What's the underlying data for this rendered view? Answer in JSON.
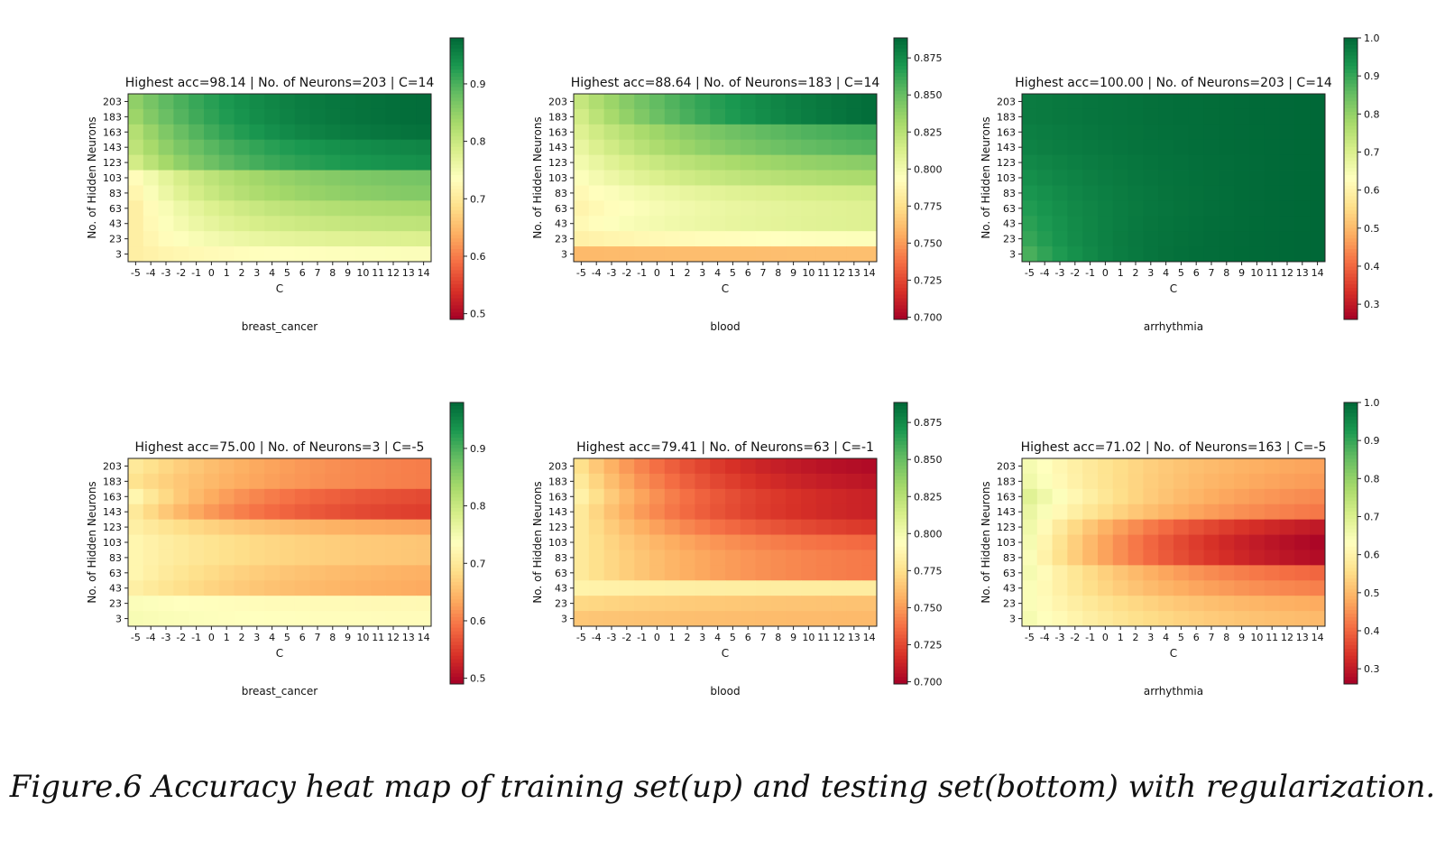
{
  "caption": "Figure.6  Accuracy heat map of training set(up) and testing set(bottom) with regularization.",
  "chart_data": [
    {
      "type": "heatmap",
      "name": "breast_cancer",
      "subset": "train",
      "title": "Highest acc=98.14 | No. of Neurons=203 | C=14",
      "xlabel": "C",
      "ylabel": "No. of Hidden Neurons",
      "x": [
        -5,
        -4,
        -3,
        -2,
        -1,
        0,
        1,
        2,
        3,
        4,
        5,
        6,
        7,
        8,
        9,
        10,
        11,
        12,
        13,
        14
      ],
      "y": [
        203,
        183,
        163,
        143,
        123,
        103,
        83,
        63,
        43,
        23,
        3
      ],
      "colorbar": {
        "min": 0.49,
        "max": 0.98,
        "ticks": [
          0.5,
          0.6,
          0.7,
          0.8,
          0.9
        ],
        "tick_labels": [
          "0.5",
          "0.6",
          "0.7",
          "0.8",
          "0.9"
        ]
      },
      "colormap": "RdYlGn",
      "rows": [
        {
          "start": 0.85,
          "end": 0.975,
          "k": 3
        },
        {
          "start": 0.84,
          "end": 0.975,
          "k": 3
        },
        {
          "start": 0.82,
          "end": 0.97,
          "k": 3
        },
        {
          "start": 0.81,
          "end": 0.95,
          "k": 3
        },
        {
          "start": 0.79,
          "end": 0.94,
          "k": 3
        },
        {
          "start": 0.73,
          "end": 0.87,
          "k": 3
        },
        {
          "start": 0.72,
          "end": 0.86,
          "k": 3
        },
        {
          "start": 0.71,
          "end": 0.83,
          "k": 3
        },
        {
          "start": 0.71,
          "end": 0.81,
          "k": 3
        },
        {
          "start": 0.71,
          "end": 0.78,
          "k": 3
        },
        {
          "start": 0.71,
          "end": 0.74,
          "k": 3
        }
      ]
    },
    {
      "type": "heatmap",
      "name": "blood",
      "subset": "train",
      "title": "Highest acc=88.64 | No. of Neurons=183 | C=14",
      "xlabel": "C",
      "ylabel": "No. of Hidden Neurons",
      "x": [
        -5,
        -4,
        -3,
        -2,
        -1,
        0,
        1,
        2,
        3,
        4,
        5,
        6,
        7,
        8,
        9,
        10,
        11,
        12,
        13,
        14
      ],
      "y": [
        203,
        183,
        163,
        143,
        123,
        103,
        83,
        63,
        43,
        23,
        3
      ],
      "colorbar": {
        "min": 0.6985,
        "max": 0.8885,
        "ticks": [
          0.7,
          0.725,
          0.75,
          0.775,
          0.8,
          0.825,
          0.85,
          0.875
        ],
        "tick_labels": [
          "0.700",
          "0.725",
          "0.750",
          "0.775",
          "0.800",
          "0.825",
          "0.850",
          "0.875"
        ]
      },
      "colormap": "RdYlGn",
      "rows": [
        {
          "start": 0.82,
          "end": 0.886,
          "k": 2
        },
        {
          "start": 0.815,
          "end": 0.886,
          "k": 2
        },
        {
          "start": 0.81,
          "end": 0.86,
          "k": 2
        },
        {
          "start": 0.805,
          "end": 0.855,
          "k": 2
        },
        {
          "start": 0.8,
          "end": 0.84,
          "k": 2
        },
        {
          "start": 0.795,
          "end": 0.83,
          "k": 2
        },
        {
          "start": 0.79,
          "end": 0.815,
          "k": 2
        },
        {
          "start": 0.787,
          "end": 0.81,
          "k": 2
        },
        {
          "start": 0.79,
          "end": 0.81,
          "k": 2
        },
        {
          "start": 0.785,
          "end": 0.795,
          "k": 2
        },
        {
          "start": 0.76,
          "end": 0.762,
          "k": 2
        }
      ]
    },
    {
      "type": "heatmap",
      "name": "arrhythmia",
      "subset": "train",
      "title": "Highest acc=100.00 | No. of Neurons=203 | C=14",
      "xlabel": "C",
      "ylabel": "No. of Hidden Neurons",
      "x": [
        -5,
        -4,
        -3,
        -2,
        -1,
        0,
        1,
        2,
        3,
        4,
        5,
        6,
        7,
        8,
        9,
        10,
        11,
        12,
        13,
        14
      ],
      "y": [
        203,
        183,
        163,
        143,
        123,
        103,
        83,
        63,
        43,
        23,
        3
      ],
      "colorbar": {
        "min": 0.26,
        "max": 1.0,
        "ticks": [
          0.3,
          0.4,
          0.5,
          0.6,
          0.7,
          0.8,
          0.9,
          1.0
        ],
        "tick_labels": [
          "0.3",
          "0.4",
          "0.5",
          "0.6",
          "0.7",
          "0.8",
          "0.9",
          "1.0"
        ]
      },
      "colormap": "RdYlGn",
      "rows": [
        {
          "start": 0.97,
          "end": 1.0,
          "k": 1.2
        },
        {
          "start": 0.97,
          "end": 1.0,
          "k": 1.2
        },
        {
          "start": 0.965,
          "end": 1.0,
          "k": 1.4
        },
        {
          "start": 0.96,
          "end": 1.0,
          "k": 1.6
        },
        {
          "start": 0.95,
          "end": 1.0,
          "k": 1.8
        },
        {
          "start": 0.94,
          "end": 1.0,
          "k": 2
        },
        {
          "start": 0.93,
          "end": 1.0,
          "k": 2.2
        },
        {
          "start": 0.92,
          "end": 1.0,
          "k": 2.5
        },
        {
          "start": 0.91,
          "end": 1.0,
          "k": 3
        },
        {
          "start": 0.9,
          "end": 1.0,
          "k": 3.5
        },
        {
          "start": 0.88,
          "end": 1.0,
          "k": 4
        }
      ]
    },
    {
      "type": "heatmap",
      "name": "breast_cancer",
      "subset": "test",
      "title": "Highest acc=75.00 | No. of Neurons=3 | C=-5",
      "xlabel": "C",
      "ylabel": "No. of Hidden Neurons",
      "x": [
        -5,
        -4,
        -3,
        -2,
        -1,
        0,
        1,
        2,
        3,
        4,
        5,
        6,
        7,
        8,
        9,
        10,
        11,
        12,
        13,
        14
      ],
      "y": [
        203,
        183,
        163,
        143,
        123,
        103,
        83,
        63,
        43,
        23,
        3
      ],
      "colorbar": {
        "min": 0.49,
        "max": 0.98,
        "ticks": [
          0.5,
          0.6,
          0.7,
          0.8,
          0.9
        ],
        "tick_labels": [
          "0.5",
          "0.6",
          "0.7",
          "0.8",
          "0.9"
        ]
      },
      "colormap": "RdYlGn",
      "rows": [
        {
          "start": 0.7,
          "end": 0.6,
          "k": 2
        },
        {
          "start": 0.69,
          "end": 0.6,
          "k": 2
        },
        {
          "start": 0.72,
          "end": 0.56,
          "k": 2.5
        },
        {
          "start": 0.7,
          "end": 0.55,
          "k": 2.5
        },
        {
          "start": 0.71,
          "end": 0.63,
          "k": 2
        },
        {
          "start": 0.72,
          "end": 0.66,
          "k": 2
        },
        {
          "start": 0.72,
          "end": 0.66,
          "k": 2
        },
        {
          "start": 0.72,
          "end": 0.64,
          "k": 2
        },
        {
          "start": 0.71,
          "end": 0.635,
          "k": 2
        },
        {
          "start": 0.74,
          "end": 0.725,
          "k": 2
        },
        {
          "start": 0.745,
          "end": 0.73,
          "k": 2
        }
      ]
    },
    {
      "type": "heatmap",
      "name": "blood",
      "subset": "test",
      "title": "Highest acc=79.41 | No. of Neurons=63 | C=-1",
      "xlabel": "C",
      "ylabel": "No. of Hidden Neurons",
      "x": [
        -5,
        -4,
        -3,
        -2,
        -1,
        0,
        1,
        2,
        3,
        4,
        5,
        6,
        7,
        8,
        9,
        10,
        11,
        12,
        13,
        14
      ],
      "y": [
        203,
        183,
        163,
        143,
        123,
        103,
        83,
        63,
        43,
        23,
        3
      ],
      "colorbar": {
        "min": 0.6985,
        "max": 0.8885,
        "ticks": [
          0.7,
          0.725,
          0.75,
          0.775,
          0.8,
          0.825,
          0.85,
          0.875
        ],
        "tick_labels": [
          "0.700",
          "0.725",
          "0.750",
          "0.775",
          "0.800",
          "0.825",
          "0.850",
          "0.875"
        ]
      },
      "colormap": "RdYlGn",
      "rows": [
        {
          "start": 0.775,
          "end": 0.703,
          "k": 2.5
        },
        {
          "start": 0.78,
          "end": 0.707,
          "k": 2.5
        },
        {
          "start": 0.785,
          "end": 0.712,
          "k": 2.5
        },
        {
          "start": 0.78,
          "end": 0.712,
          "k": 2.5
        },
        {
          "start": 0.78,
          "end": 0.72,
          "k": 2
        },
        {
          "start": 0.78,
          "end": 0.735,
          "k": 2
        },
        {
          "start": 0.78,
          "end": 0.74,
          "k": 2
        },
        {
          "start": 0.78,
          "end": 0.74,
          "k": 2
        },
        {
          "start": 0.786,
          "end": 0.782,
          "k": 2
        },
        {
          "start": 0.772,
          "end": 0.763,
          "k": 2
        },
        {
          "start": 0.765,
          "end": 0.76,
          "k": 2
        }
      ]
    },
    {
      "type": "heatmap",
      "name": "arrhythmia",
      "subset": "test",
      "title": "Highest acc=71.02 | No. of Neurons=163 | C=-5",
      "xlabel": "C",
      "ylabel": "No. of Hidden Neurons",
      "x": [
        -5,
        -4,
        -3,
        -2,
        -1,
        0,
        1,
        2,
        3,
        4,
        5,
        6,
        7,
        8,
        9,
        10,
        11,
        12,
        13,
        14
      ],
      "y": [
        203,
        183,
        163,
        143,
        123,
        103,
        83,
        63,
        43,
        23,
        3
      ],
      "colorbar": {
        "min": 0.26,
        "max": 1.0,
        "ticks": [
          0.3,
          0.4,
          0.5,
          0.6,
          0.7,
          0.8,
          0.9,
          1.0
        ],
        "tick_labels": [
          "0.3",
          "0.4",
          "0.5",
          "0.6",
          "0.7",
          "0.8",
          "0.9",
          "1.0"
        ]
      },
      "colormap": "RdYlGn",
      "rows": [
        {
          "start": 0.65,
          "end": 0.47,
          "k": 2
        },
        {
          "start": 0.66,
          "end": 0.46,
          "k": 2
        },
        {
          "start": 0.69,
          "end": 0.44,
          "k": 2
        },
        {
          "start": 0.67,
          "end": 0.42,
          "k": 2
        },
        {
          "start": 0.66,
          "end": 0.3,
          "k": 2
        },
        {
          "start": 0.65,
          "end": 0.27,
          "k": 2
        },
        {
          "start": 0.64,
          "end": 0.28,
          "k": 2
        },
        {
          "start": 0.65,
          "end": 0.4,
          "k": 2
        },
        {
          "start": 0.64,
          "end": 0.43,
          "k": 2
        },
        {
          "start": 0.64,
          "end": 0.48,
          "k": 2
        },
        {
          "start": 0.65,
          "end": 0.5,
          "k": 2
        }
      ]
    }
  ]
}
